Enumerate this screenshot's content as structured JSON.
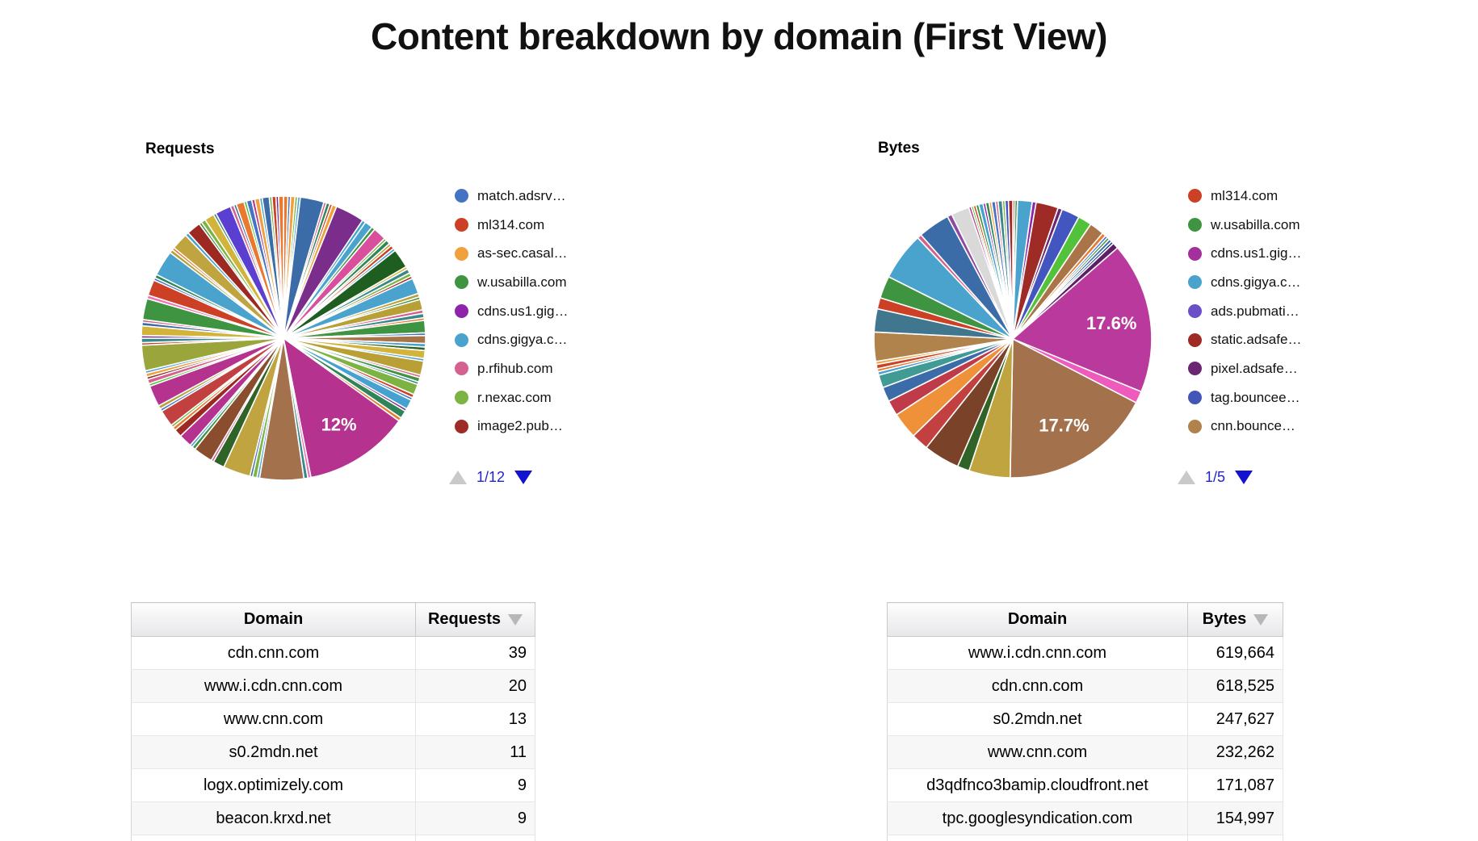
{
  "page": {
    "title": "Content breakdown by domain (First View)"
  },
  "chart_data": [
    {
      "type": "pie",
      "title": "Requests",
      "legend_position": "right",
      "pager": "1/12",
      "legend": [
        {
          "label": "match.adsrv…",
          "color": "#4573c4"
        },
        {
          "label": "ml314.com",
          "color": "#cc4125"
        },
        {
          "label": "as-sec.casal…",
          "color": "#f0a13d"
        },
        {
          "label": "w.usabilla.com",
          "color": "#3e9441"
        },
        {
          "label": "cdns.us1.gig…",
          "color": "#8e24aa"
        },
        {
          "label": "cdns.gigya.c…",
          "color": "#4aa3cc"
        },
        {
          "label": "p.rfihub.com",
          "color": "#d4618f"
        },
        {
          "label": "r.nexac.com",
          "color": "#7cb342"
        },
        {
          "label": "image2.pub…",
          "color": "#9e2b25"
        }
      ],
      "labeled_slices": [
        {
          "label": "12%",
          "value": 12
        }
      ],
      "slices": [
        {
          "v": 0.5,
          "c": "#e8792e"
        },
        {
          "v": 0.3,
          "c": "#4573c4"
        },
        {
          "v": 0.5,
          "c": "#f0a13d"
        },
        {
          "v": 0.3,
          "c": "#7cb342"
        },
        {
          "v": 0.3,
          "c": "#45a1cf"
        },
        {
          "v": 2.7,
          "c": "#3c6ca8"
        },
        {
          "v": 0.3,
          "c": "#d4618f"
        },
        {
          "v": 0.4,
          "c": "#2f855a"
        },
        {
          "v": 0.3,
          "c": "#cc4125"
        },
        {
          "v": 0.5,
          "c": "#f0a13d"
        },
        {
          "v": 3.3,
          "c": "#7b2d8b"
        },
        {
          "v": 0.4,
          "c": "#45a1cf"
        },
        {
          "v": 0.9,
          "c": "#4aa3cc"
        },
        {
          "v": 0.4,
          "c": "#3e9441"
        },
        {
          "v": 1.5,
          "c": "#d94f9e"
        },
        {
          "v": 0.3,
          "c": "#7cb342"
        },
        {
          "v": 0.5,
          "c": "#2f855a"
        },
        {
          "v": 0.3,
          "c": "#b8a037"
        },
        {
          "v": 0.4,
          "c": "#cc4125"
        },
        {
          "v": 0.3,
          "c": "#45a1cf"
        },
        {
          "v": 2.2,
          "c": "#1e5e20"
        },
        {
          "v": 0.3,
          "c": "#d2b43a"
        },
        {
          "v": 0.5,
          "c": "#38898c"
        },
        {
          "v": 0.4,
          "c": "#7cb342"
        },
        {
          "v": 0.3,
          "c": "#9e2b25"
        },
        {
          "v": 1.8,
          "c": "#4aa3cc"
        },
        {
          "v": 0.4,
          "c": "#b8a037"
        },
        {
          "v": 0.3,
          "c": "#3e9441"
        },
        {
          "v": 1.2,
          "c": "#b8a037"
        },
        {
          "v": 0.4,
          "c": "#d4618f"
        },
        {
          "v": 0.5,
          "c": "#38898c"
        },
        {
          "v": 0.3,
          "c": "#e8792e"
        },
        {
          "v": 1.4,
          "c": "#3e9441"
        },
        {
          "v": 0.3,
          "c": "#4573c4"
        },
        {
          "v": 0.9,
          "c": "#a87448"
        },
        {
          "v": 0.4,
          "c": "#45a1cf"
        },
        {
          "v": 0.4,
          "c": "#2f6327"
        },
        {
          "v": 0.9,
          "c": "#d2b43a"
        },
        {
          "v": 0.3,
          "c": "#4aa3cc"
        },
        {
          "v": 1.6,
          "c": "#b8a037"
        },
        {
          "v": 0.3,
          "c": "#d4618f"
        },
        {
          "v": 0.5,
          "c": "#3e9441"
        },
        {
          "v": 0.3,
          "c": "#38898c"
        },
        {
          "v": 1.2,
          "c": "#7cb342"
        },
        {
          "v": 0.4,
          "c": "#cc4125"
        },
        {
          "v": 0.3,
          "c": "#4573c4"
        },
        {
          "v": 1.1,
          "c": "#45a1cf"
        },
        {
          "v": 0.3,
          "c": "#7b2d8b"
        },
        {
          "v": 0.9,
          "c": "#2f855a"
        },
        {
          "v": 0.4,
          "c": "#e8792e"
        },
        {
          "v": 12.0,
          "c": "#b5338f",
          "label": "12%"
        },
        {
          "v": 0.35,
          "c": "#f06eb7"
        },
        {
          "v": 0.45,
          "c": "#38898c"
        },
        {
          "v": 5.0,
          "c": "#a4714d"
        },
        {
          "v": 0.3,
          "c": "#4aa3cc"
        },
        {
          "v": 0.5,
          "c": "#7cb342"
        },
        {
          "v": 0.3,
          "c": "#3c6ca8"
        },
        {
          "v": 3.1,
          "c": "#bfa43f"
        },
        {
          "v": 1.3,
          "c": "#2f6327"
        },
        {
          "v": 0.3,
          "c": "#d4618f"
        },
        {
          "v": 2.2,
          "c": "#8a4d2e"
        },
        {
          "v": 0.4,
          "c": "#3e9441"
        },
        {
          "v": 0.3,
          "c": "#45a1cf"
        },
        {
          "v": 1.5,
          "c": "#b5338f"
        },
        {
          "v": 0.9,
          "c": "#9c2a22"
        },
        {
          "v": 0.4,
          "c": "#e8792e"
        },
        {
          "v": 0.3,
          "c": "#7cb342"
        },
        {
          "v": 1.9,
          "c": "#c24040"
        },
        {
          "v": 0.3,
          "c": "#4573c4"
        },
        {
          "v": 0.4,
          "c": "#b8a037"
        },
        {
          "v": 2.4,
          "c": "#b5338f"
        },
        {
          "v": 0.3,
          "c": "#52c23a"
        },
        {
          "v": 0.5,
          "c": "#d4618f"
        },
        {
          "v": 0.3,
          "c": "#9e2b25"
        },
        {
          "v": 0.4,
          "c": "#f0a13d"
        },
        {
          "v": 0.3,
          "c": "#45a1cf"
        },
        {
          "v": 2.9,
          "c": "#9aa63c"
        },
        {
          "v": 0.3,
          "c": "#cc4125"
        },
        {
          "v": 0.5,
          "c": "#38898c"
        },
        {
          "v": 0.3,
          "c": "#7b2d8b"
        },
        {
          "v": 1.1,
          "c": "#d2b43a"
        },
        {
          "v": 0.4,
          "c": "#3c6ca8"
        },
        {
          "v": 0.3,
          "c": "#d4618f"
        },
        {
          "v": 2.4,
          "c": "#3e9441"
        },
        {
          "v": 0.4,
          "c": "#f06eb7"
        },
        {
          "v": 1.8,
          "c": "#cc4125"
        },
        {
          "v": 0.3,
          "c": "#4573c4"
        },
        {
          "v": 0.4,
          "c": "#2f855a"
        },
        {
          "v": 2.9,
          "c": "#4aa3cc"
        },
        {
          "v": 0.4,
          "c": "#b8a037"
        },
        {
          "v": 0.3,
          "c": "#e8792e"
        },
        {
          "v": 1.9,
          "c": "#bfa43f"
        },
        {
          "v": 0.4,
          "c": "#45a1cf"
        },
        {
          "v": 1.6,
          "c": "#9c2a22"
        },
        {
          "v": 0.3,
          "c": "#3e9441"
        },
        {
          "v": 0.5,
          "c": "#7cb342"
        },
        {
          "v": 1.1,
          "c": "#d2b43a"
        },
        {
          "v": 0.3,
          "c": "#38898c"
        },
        {
          "v": 1.8,
          "c": "#5b3fd0"
        },
        {
          "v": 0.4,
          "c": "#d4618f"
        },
        {
          "v": 0.3,
          "c": "#3c6ca8"
        },
        {
          "v": 0.9,
          "c": "#e8792e"
        },
        {
          "v": 0.3,
          "c": "#52c23a"
        },
        {
          "v": 0.6,
          "c": "#4573c4"
        },
        {
          "v": 0.35,
          "c": "#b5338f"
        },
        {
          "v": 0.55,
          "c": "#f0a13d"
        },
        {
          "v": 0.3,
          "c": "#45a1cf"
        },
        {
          "v": 0.8,
          "c": "#3c6ca8"
        },
        {
          "v": 0.3,
          "c": "#7cb342"
        },
        {
          "v": 0.45,
          "c": "#cc4125"
        },
        {
          "v": 0.3,
          "c": "#7b2d8b"
        },
        {
          "v": 0.55,
          "c": "#e8792e"
        }
      ]
    },
    {
      "type": "pie",
      "title": "Bytes",
      "legend_position": "right",
      "pager": "1/5",
      "legend": [
        {
          "label": "ml314.com",
          "color": "#cc4125"
        },
        {
          "label": "w.usabilla.com",
          "color": "#3e9441"
        },
        {
          "label": "cdns.us1.gig…",
          "color": "#a3309c"
        },
        {
          "label": "cdns.gigya.c…",
          "color": "#4aa3cc"
        },
        {
          "label": "ads.pubmati…",
          "color": "#6b4fc8"
        },
        {
          "label": "static.adsafe…",
          "color": "#9e2b25"
        },
        {
          "label": "pixel.adsafe…",
          "color": "#6a2670"
        },
        {
          "label": "tag.bouncee…",
          "color": "#4356b8"
        },
        {
          "label": "cnn.bounce…",
          "color": "#b0824c"
        }
      ],
      "labeled_slices": [
        {
          "label": "17.6%",
          "value": 17.6
        },
        {
          "label": "17.7%",
          "value": 17.7
        }
      ],
      "slices": [
        {
          "v": 0.25,
          "c": "#cc4125"
        },
        {
          "v": 0.3,
          "c": "#3e9441"
        },
        {
          "v": 1.7,
          "c": "#4aa3cc"
        },
        {
          "v": 0.45,
          "c": "#8e24aa"
        },
        {
          "v": 2.6,
          "c": "#9e2b25"
        },
        {
          "v": 0.5,
          "c": "#6a2670"
        },
        {
          "v": 2.1,
          "c": "#4356c0"
        },
        {
          "v": 1.6,
          "c": "#52c23a"
        },
        {
          "v": 1.7,
          "c": "#a87448"
        },
        {
          "v": 0.45,
          "c": "#e8792e"
        },
        {
          "v": 0.3,
          "c": "#4573c4"
        },
        {
          "v": 0.3,
          "c": "#3e9441"
        },
        {
          "v": 0.35,
          "c": "#3c6ca8"
        },
        {
          "v": 0.3,
          "c": "#1a3c8c"
        },
        {
          "v": 0.7,
          "c": "#5c1f66"
        },
        {
          "v": 17.6,
          "c": "#b93a9c",
          "label": "17.6%"
        },
        {
          "v": 1.4,
          "c": "#ee5bbd"
        },
        {
          "v": 17.7,
          "c": "#a4714d",
          "label": "17.7%"
        },
        {
          "v": 4.8,
          "c": "#bfa43f"
        },
        {
          "v": 1.4,
          "c": "#2f6327"
        },
        {
          "v": 4.2,
          "c": "#7a4228"
        },
        {
          "v": 2.0,
          "c": "#c24040"
        },
        {
          "v": 3.1,
          "c": "#ef9139"
        },
        {
          "v": 1.8,
          "c": "#bf3b49"
        },
        {
          "v": 1.7,
          "c": "#3c6ca8"
        },
        {
          "v": 1.5,
          "c": "#3f9b94"
        },
        {
          "v": 0.4,
          "c": "#45a1cf"
        },
        {
          "v": 0.35,
          "c": "#e8792e"
        },
        {
          "v": 0.5,
          "c": "#cc4125"
        },
        {
          "v": 0.35,
          "c": "#f0a13d"
        },
        {
          "v": 3.4,
          "c": "#b0824c"
        },
        {
          "v": 2.7,
          "c": "#41768f"
        },
        {
          "v": 1.3,
          "c": "#cc4125"
        },
        {
          "v": 2.6,
          "c": "#3e9441"
        },
        {
          "v": 5.6,
          "c": "#4aa3cc"
        },
        {
          "v": 0.5,
          "c": "#d4618f"
        },
        {
          "v": 3.7,
          "c": "#3c6ca8"
        },
        {
          "v": 0.55,
          "c": "#8e4a9e"
        },
        {
          "v": 2.1,
          "c": "#d9d9d9"
        },
        {
          "v": 0.3,
          "c": "#b5338f"
        },
        {
          "v": 0.25,
          "c": "#52c23a"
        },
        {
          "v": 0.3,
          "c": "#cc4125"
        },
        {
          "v": 0.35,
          "c": "#3e9441"
        },
        {
          "v": 0.5,
          "c": "#45a1cf"
        },
        {
          "v": 0.3,
          "c": "#8e24aa"
        },
        {
          "v": 0.4,
          "c": "#2f855a"
        },
        {
          "v": 0.3,
          "c": "#f0a13d"
        },
        {
          "v": 0.45,
          "c": "#4573c4"
        },
        {
          "v": 0.3,
          "c": "#d4618f"
        },
        {
          "v": 0.5,
          "c": "#38898c"
        },
        {
          "v": 0.3,
          "c": "#7cb342"
        },
        {
          "v": 0.4,
          "c": "#4356c0"
        },
        {
          "v": 0.5,
          "c": "#9e2b25"
        }
      ]
    },
    {
      "type": "table",
      "columns": [
        "Domain",
        "Requests"
      ],
      "sorted_by": "Requests",
      "rows": [
        [
          "cdn.cnn.com",
          "39"
        ],
        [
          "www.i.cdn.cnn.com",
          "20"
        ],
        [
          "www.cnn.com",
          "13"
        ],
        [
          "s0.2mdn.net",
          "11"
        ],
        [
          "logx.optimizely.com",
          "9"
        ],
        [
          "beacon.krxd.net",
          "9"
        ]
      ]
    },
    {
      "type": "table",
      "columns": [
        "Domain",
        "Bytes"
      ],
      "sorted_by": "Bytes",
      "rows": [
        [
          "www.i.cdn.cnn.com",
          "619,664"
        ],
        [
          "cdn.cnn.com",
          "618,525"
        ],
        [
          "s0.2mdn.net",
          "247,627"
        ],
        [
          "www.cnn.com",
          "232,262"
        ],
        [
          "d3qdfnco3bamip.cloudfront.net",
          "171,087"
        ],
        [
          "tpc.googlesyndication.com",
          "154,997"
        ]
      ]
    }
  ]
}
